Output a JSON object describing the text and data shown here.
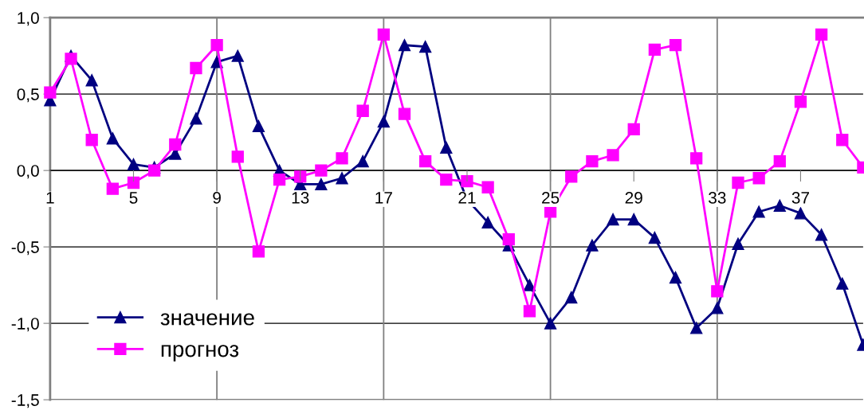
{
  "chart_data": {
    "type": "line",
    "x": [
      1,
      2,
      3,
      4,
      5,
      6,
      7,
      8,
      9,
      10,
      11,
      12,
      13,
      14,
      15,
      16,
      17,
      18,
      19,
      20,
      21,
      22,
      23,
      24,
      25,
      26,
      27,
      28,
      29,
      30,
      31,
      32,
      33,
      34,
      35,
      36,
      37,
      38,
      39,
      40
    ],
    "series": [
      {
        "name": "значение",
        "color": "#000080",
        "marker": "triangle",
        "values": [
          0.46,
          0.75,
          0.59,
          0.21,
          0.04,
          0.02,
          0.11,
          0.34,
          0.71,
          0.75,
          0.29,
          0.0,
          -0.09,
          -0.09,
          -0.05,
          0.06,
          0.32,
          0.82,
          0.81,
          0.15,
          -0.19,
          -0.34,
          -0.49,
          -0.75,
          -1.0,
          -0.83,
          -0.49,
          -0.32,
          -0.32,
          -0.44,
          -0.7,
          -1.03,
          -0.9,
          -0.48,
          -0.27,
          -0.23,
          -0.28,
          -0.42,
          -0.74,
          -1.14
        ]
      },
      {
        "name": "прогноз",
        "color": "#ff00ff",
        "marker": "square",
        "values": [
          0.51,
          0.73,
          0.2,
          -0.12,
          -0.08,
          0.0,
          0.17,
          0.67,
          0.82,
          0.09,
          -0.53,
          -0.06,
          -0.04,
          0.0,
          0.08,
          0.39,
          0.89,
          0.37,
          0.06,
          -0.06,
          -0.07,
          -0.11,
          -0.45,
          -0.92,
          -0.27,
          -0.04,
          0.06,
          0.1,
          0.27,
          0.79,
          0.82,
          0.08,
          -0.79,
          -0.08,
          -0.05,
          0.06,
          0.45,
          0.89,
          0.2,
          0.02
        ]
      }
    ],
    "xlim": [
      1,
      40
    ],
    "xticks": [
      1,
      5,
      9,
      13,
      17,
      21,
      25,
      29,
      33,
      37
    ],
    "ylim": [
      -1.5,
      1.0
    ],
    "yticks": [
      {
        "value": -1.5,
        "label": "-1,5"
      },
      {
        "value": -1.0,
        "label": "-1,0"
      },
      {
        "value": -0.5,
        "label": "-0,5"
      },
      {
        "value": 0.0,
        "label": "0,0"
      },
      {
        "value": 0.5,
        "label": "0,5"
      },
      {
        "value": 1.0,
        "label": "1,0"
      }
    ],
    "grid": "y",
    "ref_lines": [
      {
        "axis": "x",
        "value": 9,
        "color": "#808080"
      },
      {
        "axis": "x",
        "value": 17,
        "color": "#808080"
      },
      {
        "axis": "x",
        "value": 25,
        "color": "#808080"
      },
      {
        "axis": "x",
        "value": 33,
        "color": "#808080"
      }
    ],
    "legend": "bottom left",
    "line_style": "solid"
  }
}
